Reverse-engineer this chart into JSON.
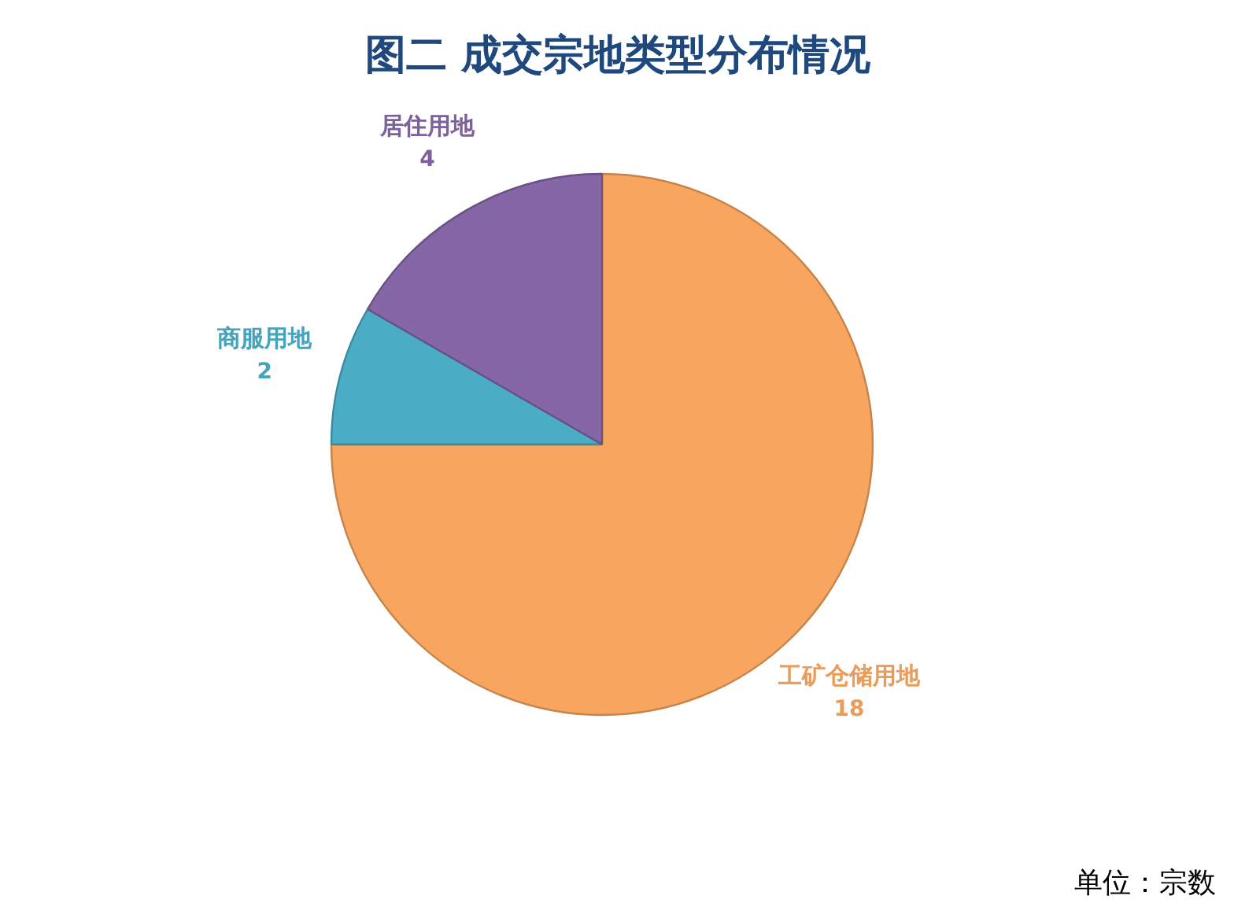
{
  "chart_data": {
    "type": "pie",
    "title": "图二 成交宗地类型分布情况",
    "categories": [
      "工矿仓储用地",
      "商服用地",
      "居住用地"
    ],
    "values": [
      18,
      2,
      4
    ],
    "colors": [
      "#f7a55f",
      "#4bacc6",
      "#8566a6"
    ],
    "data_labels": true,
    "annotations": [
      "单位：宗数"
    ]
  }
}
